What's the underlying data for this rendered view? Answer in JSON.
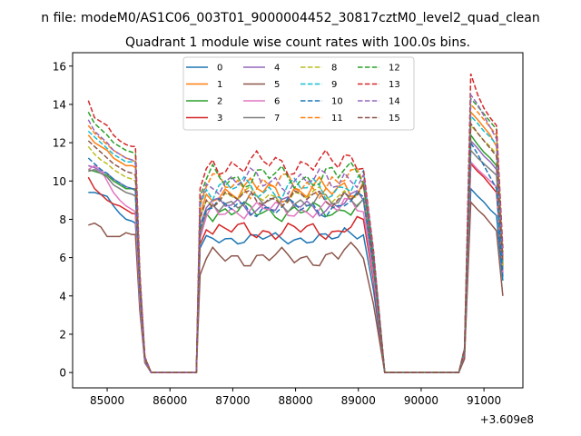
{
  "chart_data": {
    "type": "line",
    "suptitle": "n file: modeM0/AS1C06_003T01_9000004452_30817cztM0_level2_quad_clean",
    "title": "Quadrant 1 module wise count rates with 100.0s bins.",
    "xlabel": "",
    "ylabel": "",
    "x_offset_label": "+3.609e8",
    "xlim": [
      84450,
      91620
    ],
    "ylim": [
      -0.8,
      16.7
    ],
    "xticks": [
      85000,
      86000,
      87000,
      88000,
      89000,
      90000,
      91000
    ],
    "xtick_labels": [
      "85000",
      "86000",
      "87000",
      "88000",
      "89000",
      "90000",
      "91000"
    ],
    "yticks": [
      0,
      2,
      4,
      6,
      8,
      10,
      12,
      14,
      16
    ],
    "ytick_labels": [
      "0",
      "2",
      "4",
      "6",
      "8",
      "10",
      "12",
      "14",
      "16"
    ],
    "legend_position": "upper center, 4 columns",
    "colors": [
      "#1f77b4",
      "#ff7f0e",
      "#2ca02c",
      "#d62728",
      "#9467bd",
      "#8c564b",
      "#e377c2",
      "#7f7f7f",
      "#bcbd22",
      "#17becf"
    ],
    "time_bins": {
      "burst1": [
        84700,
        84800,
        84900,
        85000,
        85100,
        85200,
        85300,
        85400,
        85450
      ],
      "drop1": [
        85520,
        85600,
        85700,
        85800,
        86000,
        86200,
        86420
      ],
      "burst2_start": 86480,
      "burst2_step": 100,
      "burst2_points": 27,
      "drop2": [
        89240,
        89420,
        89600,
        90000,
        90200,
        90400,
        90600,
        90690
      ],
      "burst3": [
        90790,
        90900,
        91000,
        91100,
        91200,
        91300
      ]
    },
    "series": [
      {
        "name": "0",
        "style": "solid",
        "b1": [
          9.4,
          9.4,
          9.3,
          9.2,
          8.7,
          8.3,
          8.0,
          7.9,
          7.8
        ],
        "b2_base": 7.0,
        "b2_amp": 0.2,
        "start": 6.5,
        "b3": [
          9.6,
          9.2,
          8.9,
          8.5,
          8.2,
          4.8
        ]
      },
      {
        "name": "1",
        "style": "solid",
        "b1": [
          12.4,
          12.0,
          11.8,
          11.6,
          11.2,
          11.0,
          10.8,
          10.8,
          10.7
        ],
        "b2_base": 9.5,
        "b2_amp": 0.4,
        "start": 8.3,
        "b3": [
          13.6,
          13.2,
          12.8,
          12.4,
          11.8,
          5.5
        ]
      },
      {
        "name": "2",
        "style": "solid",
        "b1": [
          10.6,
          10.5,
          10.4,
          10.3,
          10.0,
          9.8,
          9.6,
          9.6,
          9.5
        ],
        "b2_base": 8.4,
        "b2_amp": 0.3,
        "start": 7.4,
        "b3": [
          12.4,
          11.9,
          11.5,
          11.2,
          10.8,
          5.6
        ]
      },
      {
        "name": "3",
        "style": "solid",
        "b1": [
          10.2,
          9.6,
          9.3,
          9.0,
          8.8,
          8.7,
          8.5,
          8.3,
          8.3
        ],
        "b2_base": 7.4,
        "b2_amp": 0.3,
        "start": 6.7,
        "b3": [
          10.9,
          10.5,
          10.2,
          9.8,
          9.4,
          5.2
        ]
      },
      {
        "name": "4",
        "style": "solid",
        "b1": [
          10.8,
          10.7,
          10.5,
          10.4,
          10.1,
          9.9,
          9.7,
          9.6,
          9.6
        ],
        "b2_base": 8.7,
        "b2_amp": 0.3,
        "start": 7.7,
        "b3": [
          12.1,
          11.7,
          11.3,
          11.0,
          10.6,
          5.3
        ]
      },
      {
        "name": "5",
        "style": "solid",
        "b1": [
          7.7,
          7.8,
          7.6,
          7.1,
          7.1,
          7.1,
          7.3,
          7.2,
          7.2
        ],
        "b2_base": 6.0,
        "b2_amp": 0.3,
        "start": 5.1,
        "b3": [
          8.9,
          8.5,
          8.2,
          7.8,
          7.4,
          4.0
        ]
      },
      {
        "name": "6",
        "style": "solid",
        "b1": [
          10.6,
          10.8,
          10.6,
          10.0,
          9.4,
          9.0,
          8.7,
          8.5,
          8.4
        ],
        "b2_base": 8.5,
        "b2_amp": 0.3,
        "start": 7.0,
        "b3": [
          11.0,
          10.6,
          10.3,
          10.0,
          9.7,
          5.2
        ]
      },
      {
        "name": "7",
        "style": "solid",
        "b1": [
          10.5,
          10.6,
          10.4,
          10.2,
          9.8,
          9.6,
          9.4,
          9.3,
          9.2
        ],
        "b2_base": 8.9,
        "b2_amp": 0.3,
        "start": 7.2,
        "b3": [
          11.6,
          11.2,
          10.9,
          10.6,
          10.3,
          5.4
        ]
      },
      {
        "name": "8",
        "style": "dashed",
        "b1": [
          11.8,
          11.4,
          11.1,
          10.9,
          10.6,
          10.4,
          10.2,
          10.1,
          10.0
        ],
        "b2_base": 9.2,
        "b2_amp": 0.3,
        "start": 8.0,
        "b3": [
          12.9,
          12.5,
          12.1,
          11.8,
          11.4,
          5.6
        ]
      },
      {
        "name": "9",
        "style": "dashed",
        "b1": [
          12.6,
          12.3,
          12.0,
          11.7,
          11.4,
          11.2,
          11.0,
          11.0,
          10.9
        ],
        "b2_base": 9.6,
        "b2_amp": 0.4,
        "start": 8.7,
        "b3": [
          13.4,
          13.0,
          12.6,
          12.3,
          11.9,
          5.8
        ]
      },
      {
        "name": "10",
        "style": "dashed",
        "b1": [
          11.2,
          10.9,
          10.6,
          10.4,
          10.1,
          9.9,
          9.7,
          9.6,
          9.5
        ],
        "b2_base": 8.6,
        "b2_amp": 0.3,
        "start": 7.6,
        "b3": [
          12.0,
          11.4,
          10.8,
          10.2,
          9.6,
          5.0
        ]
      },
      {
        "name": "11",
        "style": "dashed",
        "b1": [
          12.9,
          12.5,
          12.2,
          11.9,
          11.6,
          11.4,
          11.2,
          11.1,
          11.0
        ],
        "b2_base": 9.8,
        "b2_amp": 0.4,
        "start": 8.8,
        "b3": [
          14.0,
          13.6,
          13.2,
          12.8,
          12.4,
          6.0
        ]
      },
      {
        "name": "12",
        "style": "dashed",
        "b1": [
          13.6,
          13.0,
          12.7,
          12.4,
          12.0,
          11.8,
          11.6,
          11.5,
          11.4
        ],
        "b2_base": 10.2,
        "b2_amp": 0.4,
        "start": 9.2,
        "b3": [
          14.3,
          13.9,
          13.5,
          13.1,
          12.7,
          6.3
        ]
      },
      {
        "name": "13",
        "style": "dashed",
        "b1": [
          14.2,
          13.3,
          13.1,
          12.9,
          12.4,
          12.1,
          11.9,
          11.8,
          11.8
        ],
        "b2_base": 10.9,
        "b2_amp": 0.4,
        "start": 9.6,
        "b3": [
          15.6,
          14.5,
          13.8,
          13.3,
          12.9,
          6.5
        ]
      },
      {
        "name": "14",
        "style": "dashed",
        "b1": [
          13.2,
          12.6,
          12.3,
          12.0,
          11.6,
          11.4,
          11.2,
          11.1,
          11.0
        ],
        "b2_base": 10.0,
        "b2_amp": 0.4,
        "start": 8.9,
        "b3": [
          14.5,
          14.0,
          13.4,
          12.8,
          12.2,
          6.1
        ]
      },
      {
        "name": "15",
        "style": "dashed",
        "b1": [
          12.1,
          11.8,
          11.5,
          11.2,
          10.9,
          10.7,
          10.5,
          10.4,
          10.3
        ],
        "b2_base": 9.1,
        "b2_amp": 0.3,
        "start": 8.1,
        "b3": [
          13.0,
          12.5,
          12.1,
          11.7,
          11.3,
          5.7
        ]
      }
    ]
  }
}
